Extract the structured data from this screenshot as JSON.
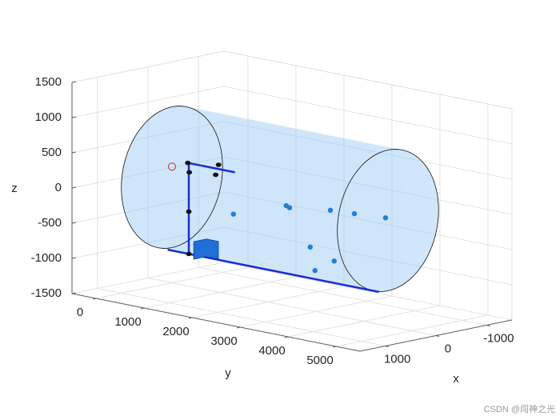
{
  "chart_data": {
    "type": "scatter3d",
    "x_label": "x",
    "y_label": "y",
    "z_label": "z",
    "xlim": [
      -1500,
      1500
    ],
    "ylim": [
      -500,
      5500
    ],
    "zlim": [
      -1500,
      1500
    ],
    "xticks": [
      -1000,
      0,
      1000
    ],
    "yticks": [
      0,
      1000,
      2000,
      3000,
      4000,
      5000
    ],
    "zticks": [
      -1500,
      -1000,
      -500,
      0,
      500,
      1000,
      1500
    ],
    "grid": true,
    "cylinder": {
      "radius": 1000,
      "y_start": 0,
      "y_end": 4500,
      "color": "#8ec3f2"
    },
    "points": {
      "color": "#1f7fd8",
      "x": [
        0,
        0,
        0,
        0,
        0,
        0,
        0,
        0,
        0
      ],
      "y": [
        1280,
        2380,
        2450,
        3300,
        3800,
        4450,
        2880,
        3380,
        2980
      ],
      "z": [
        -350,
        -80,
        -100,
        -20,
        0,
        30,
        -600,
        -730,
        -920
      ]
    },
    "target": {
      "x": 0,
      "y": 0,
      "z": 150,
      "color": "#d62728"
    },
    "frame": {
      "color": "#1a2fcf",
      "x": [
        -200,
        -200,
        -200,
        -200,
        -200
      ],
      "y": [
        4100,
        -300,
        140,
        140,
        1100
      ],
      "z": [
        -1100,
        -1100,
        -1100,
        190,
        190
      ]
    },
    "joints": {
      "x": [
        -200,
        -200,
        -200,
        -200,
        -200,
        -200
      ],
      "y": [
        120,
        150,
        140,
        140,
        760,
        700
      ],
      "z": [
        190,
        60,
        -500,
        -1100,
        250,
        100
      ]
    },
    "cube": {
      "x": -200,
      "y": 500,
      "z": -1000,
      "size": 250,
      "color": "#1f6fd6"
    },
    "watermark": "CSDN @闯神之光"
  }
}
